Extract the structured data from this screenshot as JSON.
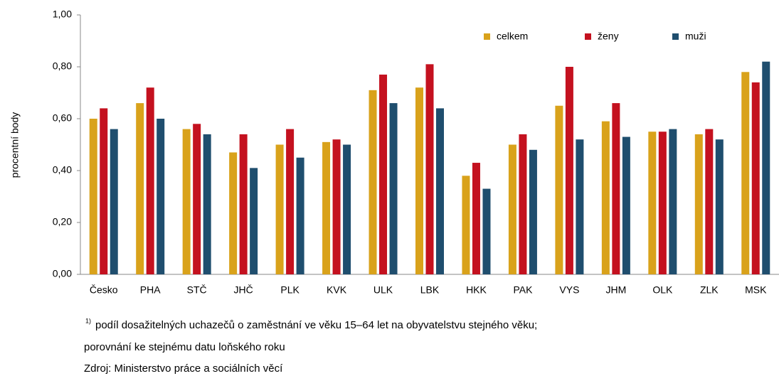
{
  "chart_data": {
    "type": "bar",
    "ylabel": "procentní body",
    "categories": [
      "Česko",
      "PHA",
      "STČ",
      "JHČ",
      "PLK",
      "KVK",
      "ULK",
      "LBK",
      "HKK",
      "PAK",
      "VYS",
      "JHM",
      "OLK",
      "ZLK",
      "MSK"
    ],
    "series": [
      {
        "name": "celkem",
        "color": "#d9a21b",
        "values": [
          0.6,
          0.66,
          0.56,
          0.47,
          0.5,
          0.51,
          0.71,
          0.72,
          0.38,
          0.5,
          0.65,
          0.59,
          0.55,
          0.54,
          0.78
        ]
      },
      {
        "name": "ženy",
        "color": "#c4111f",
        "values": [
          0.64,
          0.72,
          0.58,
          0.54,
          0.56,
          0.52,
          0.77,
          0.81,
          0.43,
          0.54,
          0.8,
          0.66,
          0.55,
          0.56,
          0.74
        ]
      },
      {
        "name": "muži",
        "color": "#1f4e6e",
        "values": [
          0.56,
          0.6,
          0.54,
          0.41,
          0.45,
          0.5,
          0.66,
          0.64,
          0.33,
          0.48,
          0.52,
          0.53,
          0.56,
          0.52,
          0.82
        ]
      }
    ],
    "ylim": [
      0,
      1
    ],
    "yticks": [
      {
        "value": 0,
        "label": "0,00"
      },
      {
        "value": 0.2,
        "label": "0,20"
      },
      {
        "value": 0.4,
        "label": "0,40"
      },
      {
        "value": 0.6,
        "label": "0,60"
      },
      {
        "value": 0.8,
        "label": "0,80"
      },
      {
        "value": 1,
        "label": "1,00"
      }
    ],
    "legend": "top-right",
    "note_marker": "1)",
    "notes": [
      "podíl dosažitelných uchazečů o zaměstnání ve věku 15–64 let na obyvatelstvu stejného věku;",
      "porovnání ke stejnému datu loňského roku",
      "Zdroj: Ministerstvo práce a sociálních věcí"
    ]
  }
}
